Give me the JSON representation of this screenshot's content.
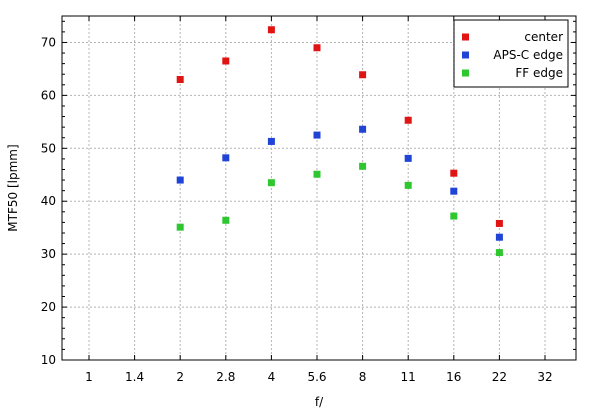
{
  "chart_data": {
    "type": "scatter",
    "title": "",
    "xlabel": "f/",
    "ylabel": "MTF50 [lpmm]",
    "x_categories": [
      "1",
      "1.4",
      "2",
      "2.8",
      "4",
      "5.6",
      "8",
      "11",
      "16",
      "22",
      "32"
    ],
    "ylim": [
      10,
      75
    ],
    "yticks": [
      10,
      20,
      30,
      40,
      50,
      60,
      70
    ],
    "grid": true,
    "legend_position": "top-right",
    "series": [
      {
        "name": "center",
        "color": "#e11414",
        "points": [
          {
            "x": "2",
            "y": 63.0
          },
          {
            "x": "2.8",
            "y": 66.5
          },
          {
            "x": "4",
            "y": 72.4
          },
          {
            "x": "5.6",
            "y": 69.0
          },
          {
            "x": "8",
            "y": 63.9
          },
          {
            "x": "11",
            "y": 55.3
          },
          {
            "x": "16",
            "y": 45.3
          },
          {
            "x": "22",
            "y": 35.8
          }
        ]
      },
      {
        "name": "APS-C edge",
        "color": "#1f44d6",
        "points": [
          {
            "x": "2",
            "y": 44.0
          },
          {
            "x": "2.8",
            "y": 48.2
          },
          {
            "x": "4",
            "y": 51.3
          },
          {
            "x": "5.6",
            "y": 52.5
          },
          {
            "x": "8",
            "y": 53.6
          },
          {
            "x": "11",
            "y": 48.1
          },
          {
            "x": "16",
            "y": 41.9
          },
          {
            "x": "22",
            "y": 33.2
          }
        ]
      },
      {
        "name": "FF edge",
        "color": "#2fc72f",
        "points": [
          {
            "x": "2",
            "y": 35.1
          },
          {
            "x": "2.8",
            "y": 36.4
          },
          {
            "x": "4",
            "y": 43.5
          },
          {
            "x": "5.6",
            "y": 45.1
          },
          {
            "x": "8",
            "y": 46.6
          },
          {
            "x": "11",
            "y": 43.0
          },
          {
            "x": "16",
            "y": 37.2
          },
          {
            "x": "22",
            "y": 30.3
          }
        ]
      }
    ]
  }
}
